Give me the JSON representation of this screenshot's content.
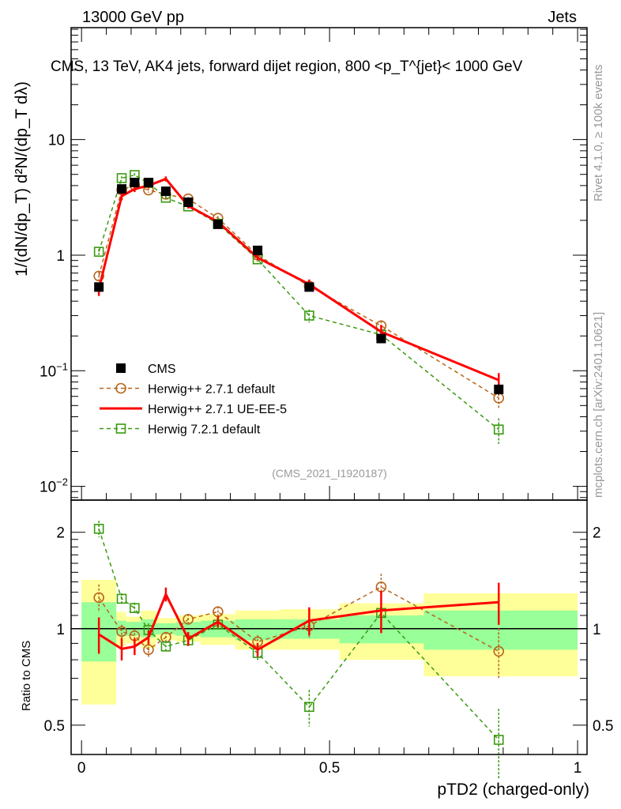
{
  "header": {
    "left": "13000 GeV pp",
    "right": "Jets"
  },
  "side_labels": {
    "rivet": "Rivet 4.1.0, ≥ 100k events",
    "mcplots": "mcplots.cern.ch [arXiv:2401.10621]"
  },
  "analysis_id": "(CMS_2021_I1920187)",
  "colors": {
    "cms": "#000000",
    "herwigpp_default": "#b8651b",
    "herwigpp_ueee5": "#ff0000",
    "herwig7": "#3a9a10",
    "band_total": "#ffff99",
    "band_stat": "#99ff99"
  },
  "chart_data": [
    {
      "type": "line",
      "title": "CMS, 13 TeV, AK4 jets, forward dijet region, 800 <p_T^{jet}< 1000 GeV",
      "ylabel": "1/(dN/dp_T) d²N/(dp_T dλ)",
      "yscale": "log",
      "xlim": [
        -0.021,
        1.019
      ],
      "ylim": [
        0.0076,
        93
      ],
      "yticks": [
        {
          "v": 0.01,
          "label": "10",
          "exp": "−2"
        },
        {
          "v": 0.1,
          "label": "10",
          "exp": "−1"
        },
        {
          "v": 1,
          "label": "1",
          "exp": ""
        },
        {
          "v": 10,
          "label": "10",
          "exp": ""
        }
      ],
      "x": [
        0.035,
        0.081,
        0.107,
        0.135,
        0.17,
        0.215,
        0.275,
        0.355,
        0.459,
        0.604,
        0.841
      ],
      "bin_edges": [
        0,
        0.07,
        0.09,
        0.12,
        0.15,
        0.19,
        0.24,
        0.31,
        0.4,
        0.52,
        0.69,
        1.0
      ],
      "legend_position": "bottom-left",
      "series": [
        {
          "name": "CMS",
          "key": "cms",
          "values": [
            0.53,
            3.74,
            4.25,
            4.25,
            3.57,
            2.87,
            1.85,
            1.1,
            0.53,
            0.19,
            0.069
          ],
          "rel_err": [
            0.05,
            0.03,
            0.03,
            0.03,
            0.03,
            0.03,
            0.03,
            0.04,
            0.05,
            0.08,
            0.1
          ]
        },
        {
          "name": "Herwig++ 2.7.1 default",
          "key": "herwigpp_default",
          "values": [
            0.66,
            3.67,
            4.04,
            3.66,
            3.36,
            3.07,
            2.09,
            1.0,
            0.54,
            0.245,
            0.058
          ],
          "rel_err": [
            0.1,
            0.05,
            0.05,
            0.05,
            0.04,
            0.04,
            0.04,
            0.05,
            0.08,
            0.1,
            0.18
          ]
        },
        {
          "name": "Herwig++ 2.7.1 UE-EE-5",
          "key": "herwigpp_ueee5",
          "values": [
            0.51,
            3.24,
            3.74,
            4.0,
            4.57,
            2.67,
            1.94,
            0.95,
            0.56,
            0.217,
            0.083
          ],
          "rel_err": [
            0.13,
            0.08,
            0.06,
            0.05,
            0.05,
            0.05,
            0.04,
            0.05,
            0.1,
            0.15,
            0.15
          ]
        },
        {
          "name": "Herwig 7.2.1 default",
          "key": "herwig7",
          "values": [
            1.07,
            4.64,
            4.93,
            4.21,
            3.14,
            2.64,
            1.87,
            0.92,
            0.3,
            0.205,
            0.031
          ],
          "rel_err": [
            0.06,
            0.04,
            0.04,
            0.05,
            0.04,
            0.04,
            0.04,
            0.05,
            0.13,
            0.1,
            0.25
          ]
        }
      ]
    },
    {
      "type": "line",
      "ylabel": "Ratio to CMS",
      "xlabel": "pTD2 (charged-only)",
      "yscale": "log",
      "xlim": [
        -0.021,
        1.019
      ],
      "ylim": [
        0.405,
        2.52
      ],
      "yticks": [
        {
          "v": 0.5,
          "label": "0.5"
        },
        {
          "v": 1,
          "label": "1"
        },
        {
          "v": 2,
          "label": "2"
        }
      ],
      "xticks": [
        {
          "v": 0,
          "label": "0"
        },
        {
          "v": 0.5,
          "label": "0.5"
        },
        {
          "v": 1,
          "label": "1"
        }
      ],
      "band_total": [
        [
          0.58,
          1.42
        ],
        [
          0.88,
          1.13
        ],
        [
          0.9,
          1.09
        ],
        [
          0.87,
          1.14
        ],
        [
          0.92,
          1.08
        ],
        [
          0.91,
          1.1
        ],
        [
          0.89,
          1.11
        ],
        [
          0.86,
          1.14
        ],
        [
          0.86,
          1.15
        ],
        [
          0.8,
          1.2
        ],
        [
          0.71,
          1.29
        ]
      ],
      "band_stat": [
        [
          0.79,
          1.21
        ],
        [
          0.95,
          1.06
        ],
        [
          0.95,
          1.05
        ],
        [
          0.94,
          1.07
        ],
        [
          0.96,
          1.04
        ],
        [
          0.95,
          1.05
        ],
        [
          0.94,
          1.06
        ],
        [
          0.92,
          1.07
        ],
        [
          0.93,
          1.07
        ],
        [
          0.9,
          1.1
        ],
        [
          0.86,
          1.14
        ]
      ],
      "series": [
        {
          "name": "Herwig++ 2.7.1 default",
          "key": "herwigpp_default",
          "values": [
            1.25,
            0.98,
            0.95,
            0.86,
            0.94,
            1.07,
            1.13,
            0.91,
            1.02,
            1.35,
            0.85
          ]
        },
        {
          "name": "Herwig++ 2.7.1 UE-EE-5",
          "key": "herwigpp_ueee5",
          "values": [
            0.96,
            0.865,
            0.88,
            0.94,
            1.28,
            0.93,
            1.05,
            0.86,
            1.06,
            1.14,
            1.21
          ]
        },
        {
          "name": "Herwig 7.2.1 default",
          "key": "herwig7",
          "values": [
            2.05,
            1.24,
            1.16,
            0.99,
            0.88,
            0.92,
            1.03,
            0.84,
            0.57,
            1.12,
            0.45
          ]
        }
      ]
    }
  ]
}
